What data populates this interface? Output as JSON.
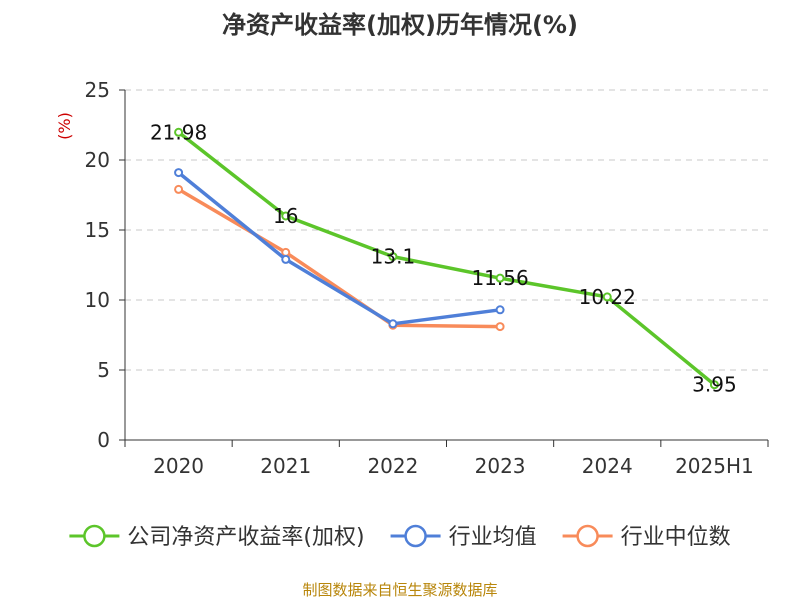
{
  "chart_data": {
    "type": "line",
    "title": "净资产收益率(加权)历年情况(%)",
    "ylabel": "(%)",
    "categories": [
      "2020",
      "2021",
      "2022",
      "2023",
      "2024",
      "2025H1"
    ],
    "ylim": [
      0,
      25
    ],
    "yticks": [
      0,
      5,
      10,
      15,
      20,
      25
    ],
    "grid": true,
    "legend_position": "bottom",
    "series": [
      {
        "name": "公司净资产收益率(加权)",
        "color": "#5cc52a",
        "values": [
          21.98,
          16,
          13.1,
          11.56,
          10.22,
          3.95
        ],
        "labels": [
          "21.98",
          "16",
          "13.1",
          "11.56",
          "10.22",
          "3.95"
        ]
      },
      {
        "name": "行业均值",
        "color": "#4f7fd8",
        "values": [
          19.1,
          12.9,
          8.3,
          9.3,
          null,
          null
        ]
      },
      {
        "name": "行业中位数",
        "color": "#f88b5a",
        "values": [
          17.9,
          13.4,
          8.2,
          8.1,
          null,
          null
        ]
      }
    ]
  },
  "source": "制图数据来自恒生聚源数据库"
}
